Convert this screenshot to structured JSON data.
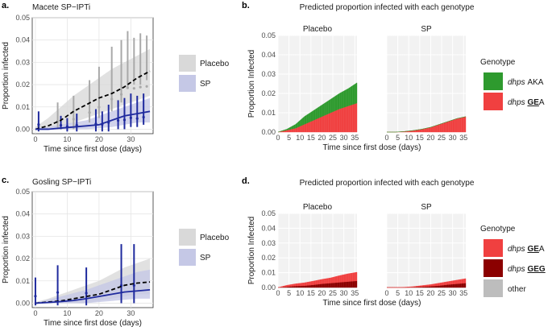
{
  "colors": {
    "placebo_band": "#d9d9d9",
    "sp_band": "#c5c8e6",
    "placebo_line": "#000000",
    "sp_line": "#1f2a9e",
    "placebo_obs": "#a9a9a9",
    "sp_obs": "#1f2a9e",
    "aka": "#2e9a2e",
    "gea": "#f04040",
    "geg": "#8b0000",
    "other": "#bdbdbd",
    "panel_bg": "#f2f2f2"
  },
  "panel_labels": {
    "a": "a.",
    "b": "b.",
    "c": "c.",
    "d": "d."
  },
  "legend_ab": {
    "placebo": "Placebo",
    "sp": "SP"
  },
  "genotype_b": {
    "title": "Genotype",
    "items": [
      {
        "prefix": "dhps",
        "geno": " AKA",
        "bold": "",
        "color_key": "aka"
      },
      {
        "prefix": "dhps",
        "geno": " A",
        "bold": "GE",
        "color_key": "gea"
      }
    ]
  },
  "genotype_d": {
    "title": "Genotype",
    "items": [
      {
        "prefix": "dhps",
        "geno": " A",
        "bold": "GE",
        "color_key": "gea"
      },
      {
        "prefix": "dhps",
        "geno": "",
        "bold": "GEG",
        "color_key": "geg"
      },
      {
        "prefix": "",
        "geno": "other",
        "bold": "",
        "color_key": "other"
      }
    ]
  },
  "chart_data": [
    {
      "id": "a",
      "type": "line",
      "title": "Macete SP−IPTi",
      "xlabel": "Time since first dose (days)",
      "ylabel": "Proportion infected",
      "xlim": [
        -1,
        37
      ],
      "ylim": [
        -0.002,
        0.05
      ],
      "xticks": [
        0,
        10,
        20,
        30
      ],
      "yticks": [
        0.0,
        0.01,
        0.02,
        0.03,
        0.04,
        0.05
      ],
      "ytick_labels": [
        "0.00",
        "0.01",
        "0.02",
        "0.03",
        "0.04",
        "0.05"
      ],
      "series": [
        {
          "name": "Placebo",
          "x": [
            0,
            4,
            8,
            12,
            16,
            20,
            24,
            28,
            32,
            36
          ],
          "y": [
            0,
            0.0015,
            0.004,
            0.008,
            0.011,
            0.014,
            0.016,
            0.019,
            0.023,
            0.026
          ],
          "band_low": [
            0,
            0,
            0.001,
            0.003,
            0.005,
            0.007,
            0.009,
            0.011,
            0.013,
            0.015
          ],
          "band_high": [
            0.001,
            0.005,
            0.01,
            0.015,
            0.019,
            0.023,
            0.027,
            0.03,
            0.033,
            0.036
          ],
          "obs": [
            {
              "x": 1,
              "lo": 0,
              "hi": 0.004
            },
            {
              "x": 7,
              "lo": 0,
              "hi": 0.012
            },
            {
              "x": 12,
              "lo": 0,
              "hi": 0.015
            },
            {
              "x": 17,
              "lo": 0.003,
              "hi": 0.022
            },
            {
              "x": 20,
              "lo": 0.005,
              "hi": 0.028
            },
            {
              "x": 24,
              "lo": 0.008,
              "hi": 0.037
            },
            {
              "x": 27,
              "lo": 0.012,
              "hi": 0.04
            },
            {
              "x": 29,
              "lo": 0.018,
              "hi": 0.044
            },
            {
              "x": 31,
              "lo": 0.02,
              "hi": 0.041
            },
            {
              "x": 33,
              "lo": 0.02,
              "hi": 0.043
            },
            {
              "x": 35,
              "lo": 0.022,
              "hi": 0.042
            }
          ]
        },
        {
          "name": "SP",
          "x": [
            0,
            4,
            8,
            12,
            16,
            20,
            24,
            28,
            32,
            36
          ],
          "y": [
            0,
            0,
            0.0005,
            0.001,
            0.0015,
            0.002,
            0.004,
            0.006,
            0.007,
            0.008
          ],
          "band_low": [
            0,
            0,
            0,
            0,
            0,
            0.0005,
            0.001,
            0.002,
            0.003,
            0.003
          ],
          "band_high": [
            0.0005,
            0.001,
            0.002,
            0.003,
            0.004,
            0.006,
            0.008,
            0.01,
            0.012,
            0.014
          ],
          "obs": [
            {
              "x": 1,
              "lo": -0.001,
              "hi": 0.008
            },
            {
              "x": 8,
              "lo": 0,
              "hi": 0.006
            },
            {
              "x": 10,
              "lo": -0.001,
              "hi": 0.005
            },
            {
              "x": 13,
              "lo": -0.001,
              "hi": 0.007
            },
            {
              "x": 19,
              "lo": -0.001,
              "hi": 0.009
            },
            {
              "x": 21,
              "lo": -0.001,
              "hi": 0.008
            },
            {
              "x": 23,
              "lo": -0.001,
              "hi": 0.011
            },
            {
              "x": 26,
              "lo": 0,
              "hi": 0.013
            },
            {
              "x": 28,
              "lo": 0,
              "hi": 0.014
            },
            {
              "x": 30,
              "lo": 0.001,
              "hi": 0.016
            },
            {
              "x": 32,
              "lo": 0.001,
              "hi": 0.015
            },
            {
              "x": 34,
              "lo": 0.002,
              "hi": 0.016
            }
          ]
        }
      ]
    },
    {
      "id": "b",
      "type": "area",
      "title": "Predicted proportion infected with each genotype",
      "facets": [
        "Placebo",
        "SP"
      ],
      "xlabel": "Time since first dose (days)",
      "ylabel": "Proportion Infected",
      "xlim": [
        0,
        36
      ],
      "ylim": [
        0,
        0.05
      ],
      "xticks": [
        0,
        5,
        10,
        15,
        20,
        25,
        30,
        35
      ],
      "yticks": [
        0.0,
        0.01,
        0.02,
        0.03,
        0.04,
        0.05
      ],
      "ytick_labels": [
        "0.00",
        "0.01",
        "0.02",
        "0.03",
        "0.04",
        "0.05"
      ],
      "x": [
        0,
        4,
        8,
        12,
        16,
        20,
        24,
        28,
        32,
        36
      ],
      "stacks": {
        "Placebo": [
          {
            "name": "dhps GEA",
            "values": [
              0,
              0.001,
              0.002,
              0.004,
              0.006,
              0.008,
              0.01,
              0.012,
              0.0135,
              0.015
            ]
          },
          {
            "name": "dhps AKA",
            "values": [
              0,
              0.0005,
              0.002,
              0.004,
              0.005,
              0.006,
              0.007,
              0.008,
              0.009,
              0.0105
            ]
          }
        ],
        "SP": [
          {
            "name": "dhps GEA",
            "values": [
              0,
              0,
              0.0003,
              0.0008,
              0.0015,
              0.0025,
              0.004,
              0.0055,
              0.007,
              0.008
            ]
          },
          {
            "name": "dhps AKA",
            "values": [
              0,
              0,
              0,
              0,
              0,
              0,
              0,
              0,
              0,
              0
            ]
          }
        ]
      }
    },
    {
      "id": "c",
      "type": "line",
      "title": "Gosling SP−IPTi",
      "xlabel": "Time since first dose (days)",
      "ylabel": "Proportion infected",
      "xlim": [
        -1,
        37
      ],
      "ylim": [
        -0.002,
        0.05
      ],
      "xticks": [
        0,
        10,
        20,
        30
      ],
      "yticks": [
        0.0,
        0.01,
        0.02,
        0.03,
        0.04,
        0.05
      ],
      "ytick_labels": [
        "0.00",
        "0.01",
        "0.02",
        "0.03",
        "0.04",
        "0.05"
      ],
      "series": [
        {
          "name": "Placebo",
          "x": [
            0,
            4,
            8,
            12,
            16,
            20,
            24,
            28,
            32,
            36
          ],
          "y": [
            0,
            0.0005,
            0.001,
            0.002,
            0.003,
            0.004,
            0.006,
            0.008,
            0.009,
            0.0095
          ],
          "band_low": [
            0,
            0,
            0,
            0,
            0,
            0.001,
            0.002,
            0.003,
            0.004,
            0.004
          ],
          "band_high": [
            0.0005,
            0.002,
            0.004,
            0.006,
            0.008,
            0.01,
            0.013,
            0.016,
            0.018,
            0.02
          ],
          "obs": []
        },
        {
          "name": "SP",
          "x": [
            0,
            4,
            8,
            12,
            16,
            20,
            24,
            28,
            32,
            36
          ],
          "y": [
            0,
            0.0003,
            0.0007,
            0.0012,
            0.002,
            0.003,
            0.004,
            0.005,
            0.0055,
            0.006
          ],
          "band_low": [
            0,
            0,
            0,
            0,
            0,
            0.0005,
            0.001,
            0.0015,
            0.002,
            0.002
          ],
          "band_high": [
            0.0003,
            0.0015,
            0.003,
            0.0045,
            0.006,
            0.008,
            0.01,
            0.012,
            0.014,
            0.015
          ],
          "obs": [
            {
              "x": 0,
              "lo": -0.001,
              "hi": 0.0115
            },
            {
              "x": 7,
              "lo": -0.001,
              "hi": 0.017
            },
            {
              "x": 16,
              "lo": -0.001,
              "hi": 0.016
            },
            {
              "x": 27,
              "lo": 0,
              "hi": 0.0265
            },
            {
              "x": 31,
              "lo": 0,
              "hi": 0.0265
            }
          ]
        }
      ]
    },
    {
      "id": "d",
      "type": "area",
      "title": "Predicted proportion infected with each genotype",
      "facets": [
        "Placebo",
        "SP"
      ],
      "xlabel": "Time since first dose (days)",
      "ylabel": "Proportion Infected",
      "xlim": [
        0,
        36
      ],
      "ylim": [
        0,
        0.05
      ],
      "xticks": [
        0,
        5,
        10,
        15,
        20,
        25,
        30,
        35
      ],
      "yticks": [
        0.0,
        0.01,
        0.02,
        0.03,
        0.04,
        0.05
      ],
      "ytick_labels": [
        "0.00",
        "0.01",
        "0.02",
        "0.03",
        "0.04",
        "0.05"
      ],
      "x": [
        0,
        4,
        8,
        12,
        16,
        20,
        24,
        28,
        32,
        36
      ],
      "stacks": {
        "Placebo": [
          {
            "name": "other",
            "values": [
              0,
              0,
              0,
              0,
              0,
              0,
              0,
              0,
              0,
              0
            ]
          },
          {
            "name": "dhps GEG",
            "values": [
              0,
              0.0005,
              0.001,
              0.0012,
              0.0018,
              0.0025,
              0.003,
              0.0035,
              0.004,
              0.0045
            ]
          },
          {
            "name": "dhps GEA",
            "values": [
              0,
              0.001,
              0.0015,
              0.002,
              0.0025,
              0.003,
              0.0035,
              0.0045,
              0.0053,
              0.0058
            ]
          }
        ],
        "SP": [
          {
            "name": "other",
            "values": [
              0,
              0,
              0,
              0,
              0,
              0,
              0,
              0,
              0,
              0
            ]
          },
          {
            "name": "dhps GEG",
            "values": [
              0,
              0,
              0,
              0.0002,
              0.0005,
              0.0008,
              0.0013,
              0.002,
              0.0025,
              0.003
            ]
          },
          {
            "name": "dhps GEA",
            "values": [
              0,
              0,
              0.0002,
              0.0004,
              0.0008,
              0.0012,
              0.0017,
              0.002,
              0.0025,
              0.003
            ]
          }
        ]
      }
    }
  ]
}
